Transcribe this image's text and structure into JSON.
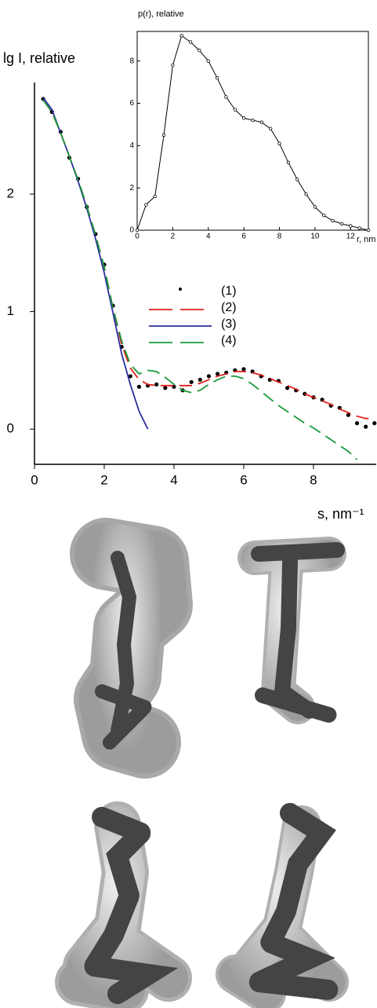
{
  "chart_data": [
    {
      "type": "line",
      "y_label": "lg I, relative",
      "x_label": "s, nm⁻¹",
      "x": [
        0.25,
        0.5,
        0.75,
        1.0,
        1.25,
        1.5,
        1.75,
        2.0,
        2.25,
        2.5,
        2.75,
        3.0,
        3.25,
        3.5,
        3.75,
        4.0,
        4.25,
        4.5,
        4.75,
        5.0,
        5.25,
        5.5,
        5.75,
        6.0,
        6.25,
        6.5,
        6.75,
        7.0,
        7.25,
        7.5,
        7.75,
        8.0,
        8.25,
        8.5,
        8.75,
        9.0,
        9.25,
        9.5,
        9.75
      ],
      "series": [
        {
          "name": "(1)",
          "color": "#000000",
          "style": "points",
          "values": [
            2.81,
            2.7,
            2.53,
            2.31,
            2.13,
            1.89,
            1.66,
            1.4,
            1.05,
            0.7,
            0.45,
            0.36,
            0.37,
            0.38,
            0.35,
            0.36,
            0.33,
            0.4,
            0.42,
            0.45,
            0.47,
            0.48,
            0.5,
            0.51,
            0.49,
            0.45,
            0.42,
            0.41,
            0.35,
            0.33,
            0.3,
            0.27,
            0.25,
            0.2,
            0.18,
            0.12,
            0.05,
            0.02,
            0.05
          ]
        },
        {
          "name": "(2)",
          "color": "#e0201b",
          "style": "dashed",
          "values": [
            2.8,
            2.7,
            2.52,
            2.32,
            2.12,
            1.9,
            1.65,
            1.38,
            1.03,
            0.72,
            0.52,
            0.42,
            0.38,
            0.37,
            0.37,
            0.37,
            0.37,
            0.37,
            0.39,
            0.42,
            0.45,
            0.47,
            0.49,
            0.49,
            0.48,
            0.46,
            0.43,
            0.4,
            0.37,
            0.34,
            0.3,
            0.27,
            0.24,
            0.21,
            0.17,
            0.14,
            0.11,
            0.09,
            0.09
          ]
        },
        {
          "name": "(3)",
          "color": "#2b2f9e",
          "style": "solid",
          "values": [
            2.82,
            2.72,
            2.52,
            2.32,
            2.11,
            1.88,
            1.62,
            1.33,
            0.99,
            0.64,
            0.38,
            0.15,
            0.0,
            null,
            null,
            null,
            null,
            null,
            null,
            null,
            null,
            null,
            null,
            null,
            null,
            null,
            null,
            null,
            null,
            null,
            null,
            null,
            null,
            null,
            null,
            null,
            null,
            null,
            null
          ]
        },
        {
          "name": "(4)",
          "color": "#1a9a3a",
          "style": "dashed",
          "values": [
            2.8,
            2.7,
            2.52,
            2.32,
            2.12,
            1.9,
            1.65,
            1.38,
            1.03,
            0.75,
            0.55,
            0.47,
            0.5,
            0.49,
            0.44,
            0.38,
            0.33,
            0.31,
            0.33,
            0.38,
            0.42,
            0.45,
            0.45,
            0.43,
            0.38,
            0.32,
            0.26,
            0.2,
            0.15,
            0.1,
            0.05,
            0.01,
            -0.04,
            -0.09,
            -0.14,
            -0.19,
            -0.26,
            null,
            null
          ]
        }
      ],
      "xlim": [
        0,
        9.8
      ],
      "xticks": [
        0,
        2,
        4,
        6,
        8
      ],
      "ylim": [
        -0.3,
        2.95
      ],
      "yticks": [
        0,
        1,
        2
      ],
      "legend": true,
      "frame": false
    },
    {
      "type": "line",
      "title": "p(r), relative",
      "x_label": "r, nm",
      "x": [
        0,
        0.5,
        1,
        1.5,
        2,
        2.5,
        3,
        3.5,
        4,
        4.5,
        5,
        5.5,
        6,
        6.5,
        7,
        7.5,
        8,
        8.5,
        9,
        9.5,
        10,
        10.5,
        11,
        11.5,
        12,
        12.5,
        13
      ],
      "values": [
        0,
        1.2,
        1.6,
        4.5,
        7.8,
        9.2,
        8.9,
        8.5,
        8.0,
        7.2,
        6.3,
        5.7,
        5.3,
        5.2,
        5.1,
        4.8,
        4.1,
        3.2,
        2.4,
        1.7,
        1.1,
        0.7,
        0.45,
        0.3,
        0.2,
        0.1,
        0
      ],
      "color": "#000000",
      "markers": true,
      "xlim": [
        0,
        13
      ],
      "xticks": [
        0,
        2,
        4,
        6,
        8,
        10,
        12
      ],
      "ylim": [
        0,
        9.4
      ],
      "yticks": [
        0,
        2,
        4,
        6,
        8
      ],
      "legend": false,
      "frame": true
    }
  ]
}
